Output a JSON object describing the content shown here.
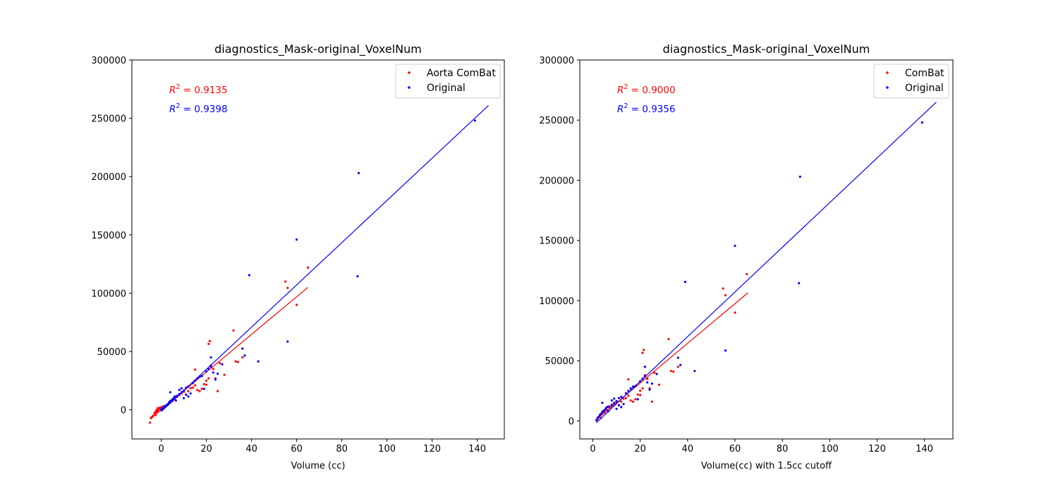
{
  "chart_data": [
    {
      "type": "scatter",
      "title": "diagnostics_Mask-original_VoxelNum",
      "xlabel": "Volume (cc)",
      "ylabel": "",
      "xlim": [
        -13,
        152
      ],
      "ylim": [
        -25000,
        300000
      ],
      "xticks": [
        0,
        20,
        40,
        60,
        80,
        100,
        120,
        140
      ],
      "yticks": [
        0,
        50000,
        100000,
        150000,
        200000,
        250000,
        300000
      ],
      "legend_position": "top-right",
      "annotations": [
        {
          "text_prefix": "R",
          "text_sup": "2",
          "text": " = 0.9135",
          "color": "#ff0000"
        },
        {
          "text_prefix": "R",
          "text_sup": "2",
          "text": " = 0.9398",
          "color": "#0000ff"
        }
      ],
      "series": [
        {
          "name": "Aorta ComBat",
          "color": "#ff0000",
          "points": [
            [
              -5,
              -11000
            ],
            [
              -4.5,
              -7000
            ],
            [
              -4,
              -6000
            ],
            [
              -3.5,
              -5000
            ],
            [
              -3,
              -3000
            ],
            [
              -2.5,
              -1500
            ],
            [
              -2.5,
              -4500
            ],
            [
              -2,
              -2000
            ],
            [
              -2,
              0
            ],
            [
              -1.5,
              -1000
            ],
            [
              -1.5,
              1500
            ],
            [
              -1,
              500
            ],
            [
              -0.5,
              2000
            ],
            [
              0,
              1000
            ],
            [
              0.5,
              2500
            ],
            [
              1,
              3000
            ],
            [
              2,
              3500
            ],
            [
              3,
              4500
            ],
            [
              4,
              6000
            ],
            [
              5,
              7500
            ],
            [
              6,
              9000
            ],
            [
              7,
              11000
            ],
            [
              8,
              12500
            ],
            [
              9,
              14000
            ],
            [
              10,
              15500
            ],
            [
              11,
              13000
            ],
            [
              12,
              16000
            ],
            [
              13,
              18500
            ],
            [
              14,
              19000
            ],
            [
              15,
              21000
            ],
            [
              15,
              34500
            ],
            [
              16,
              17000
            ],
            [
              17,
              16000
            ],
            [
              18,
              18000
            ],
            [
              19,
              22000
            ],
            [
              20,
              21500
            ],
            [
              20,
              25000
            ],
            [
              21,
              27000
            ],
            [
              21,
              56500
            ],
            [
              21.5,
              59000
            ],
            [
              22,
              38000
            ],
            [
              23,
              35000
            ],
            [
              24,
              27000
            ],
            [
              25,
              16000
            ],
            [
              26,
              40000
            ],
            [
              28,
              30000
            ],
            [
              32,
              68000
            ],
            [
              33,
              41500
            ],
            [
              34,
              41000
            ],
            [
              36,
              45000
            ],
            [
              55,
              110000
            ],
            [
              56,
              104500
            ],
            [
              60,
              90000
            ],
            [
              65,
              122000
            ]
          ],
          "fit_line": [
            [
              -5,
              -8000
            ],
            [
              65,
              105000
            ]
          ]
        },
        {
          "name": "Original",
          "color": "#0000ff",
          "points": [
            [
              0,
              0
            ],
            [
              0.5,
              1000
            ],
            [
              1,
              2000
            ],
            [
              1.5,
              2500
            ],
            [
              2,
              3500
            ],
            [
              2.5,
              4000
            ],
            [
              3,
              5000
            ],
            [
              3.5,
              6500
            ],
            [
              4,
              7500
            ],
            [
              4,
              15000
            ],
            [
              4.5,
              8000
            ],
            [
              5,
              9000
            ],
            [
              5.5,
              10000
            ],
            [
              6,
              11500
            ],
            [
              6.5,
              8000
            ],
            [
              7,
              12000
            ],
            [
              8,
              13500
            ],
            [
              8,
              17000
            ],
            [
              9,
              15000
            ],
            [
              9,
              18500
            ],
            [
              10,
              16500
            ],
            [
              10,
              10000
            ],
            [
              11,
              19000
            ],
            [
              11,
              13000
            ],
            [
              12,
              20000
            ],
            [
              12,
              11500
            ],
            [
              13,
              14000
            ],
            [
              14,
              23000
            ],
            [
              15,
              25000
            ],
            [
              16,
              27000
            ],
            [
              17,
              28500
            ],
            [
              18,
              29000
            ],
            [
              19,
              18000
            ],
            [
              20,
              33000
            ],
            [
              21,
              35000
            ],
            [
              22,
              45000
            ],
            [
              22,
              37000
            ],
            [
              23,
              32000
            ],
            [
              24,
              26000
            ],
            [
              25,
              31000
            ],
            [
              27,
              39000
            ],
            [
              36,
              52500
            ],
            [
              37,
              46500
            ],
            [
              39,
              115500
            ],
            [
              43,
              41500
            ],
            [
              56,
              58500
            ],
            [
              60,
              146000
            ],
            [
              87,
              114500
            ],
            [
              87.5,
              203000
            ],
            [
              139,
              248000
            ]
          ],
          "fit_line": [
            [
              0,
              -1500
            ],
            [
              145,
              261000
            ]
          ]
        }
      ]
    },
    {
      "type": "scatter",
      "title": "diagnostics_Mask-original_VoxelNum",
      "xlabel": "Volume(cc) with 1.5cc cutoff",
      "ylabel": "",
      "xlim": [
        -5.5,
        152
      ],
      "ylim": [
        -15000,
        300000
      ],
      "xticks": [
        0,
        20,
        40,
        60,
        80,
        100,
        120,
        140
      ],
      "yticks": [
        0,
        50000,
        100000,
        150000,
        200000,
        250000,
        300000
      ],
      "legend_position": "top-right",
      "annotations": [
        {
          "text_prefix": "R",
          "text_sup": "2",
          "text": " = 0.9000",
          "color": "#ff0000"
        },
        {
          "text_prefix": "R",
          "text_sup": "2",
          "text": " = 0.9356",
          "color": "#0000ff"
        }
      ],
      "series": [
        {
          "name": "ComBat",
          "color": "#ff0000",
          "points": [
            [
              2,
              1500
            ],
            [
              2.5,
              3000
            ],
            [
              3,
              4500
            ],
            [
              3.5,
              2500
            ],
            [
              4,
              6000
            ],
            [
              4.5,
              8500
            ],
            [
              5,
              7000
            ],
            [
              5.5,
              10500
            ],
            [
              6,
              9000
            ],
            [
              6.5,
              12000
            ],
            [
              7,
              11000
            ],
            [
              8,
              12500
            ],
            [
              9,
              14000
            ],
            [
              10,
              15500
            ],
            [
              11,
              13000
            ],
            [
              12,
              16000
            ],
            [
              13,
              18500
            ],
            [
              14,
              19000
            ],
            [
              15,
              21000
            ],
            [
              15,
              34500
            ],
            [
              16,
              17000
            ],
            [
              17,
              16000
            ],
            [
              18,
              18000
            ],
            [
              19,
              22000
            ],
            [
              20,
              21500
            ],
            [
              20,
              25000
            ],
            [
              21,
              27000
            ],
            [
              21,
              56500
            ],
            [
              21.5,
              59000
            ],
            [
              22,
              38000
            ],
            [
              23,
              35000
            ],
            [
              24,
              27000
            ],
            [
              25,
              16000
            ],
            [
              26,
              40000
            ],
            [
              28,
              30000
            ],
            [
              32,
              68000
            ],
            [
              33,
              41500
            ],
            [
              34,
              41000
            ],
            [
              36,
              45000
            ],
            [
              55,
              110000
            ],
            [
              56,
              104500
            ],
            [
              60,
              90000
            ],
            [
              65,
              122000
            ]
          ],
          "fit_line": [
            [
              1.5,
              1000
            ],
            [
              65.5,
              106500
            ]
          ]
        },
        {
          "name": "Original",
          "color": "#0000ff",
          "points": [
            [
              1.5,
              500
            ],
            [
              2,
              2500
            ],
            [
              2.5,
              3500
            ],
            [
              3,
              5000
            ],
            [
              3.5,
              6000
            ],
            [
              4,
              7500
            ],
            [
              4,
              15000
            ],
            [
              4.5,
              8000
            ],
            [
              5,
              9000
            ],
            [
              5.5,
              10000
            ],
            [
              6,
              11500
            ],
            [
              6.5,
              8000
            ],
            [
              7,
              12000
            ],
            [
              8,
              13500
            ],
            [
              8,
              17000
            ],
            [
              9,
              15000
            ],
            [
              9,
              18500
            ],
            [
              10,
              16500
            ],
            [
              10,
              10000
            ],
            [
              11,
              19000
            ],
            [
              11,
              13000
            ],
            [
              12,
              20000
            ],
            [
              12,
              11500
            ],
            [
              13,
              14000
            ],
            [
              14,
              23000
            ],
            [
              15,
              25000
            ],
            [
              16,
              27000
            ],
            [
              17,
              28500
            ],
            [
              18,
              29000
            ],
            [
              19,
              18000
            ],
            [
              20,
              33000
            ],
            [
              21,
              35000
            ],
            [
              22,
              45000
            ],
            [
              22,
              37000
            ],
            [
              23,
              32000
            ],
            [
              24,
              26000
            ],
            [
              25,
              31000
            ],
            [
              27,
              39000
            ],
            [
              36,
              52500
            ],
            [
              37,
              46500
            ],
            [
              39,
              115500
            ],
            [
              43,
              41500
            ],
            [
              56,
              58500
            ],
            [
              60,
              145500
            ],
            [
              87,
              114500
            ],
            [
              87.5,
              203000
            ],
            [
              139,
              248000
            ]
          ],
          "fit_line": [
            [
              1.5,
              -1500
            ],
            [
              145,
              265000
            ]
          ]
        }
      ]
    }
  ]
}
